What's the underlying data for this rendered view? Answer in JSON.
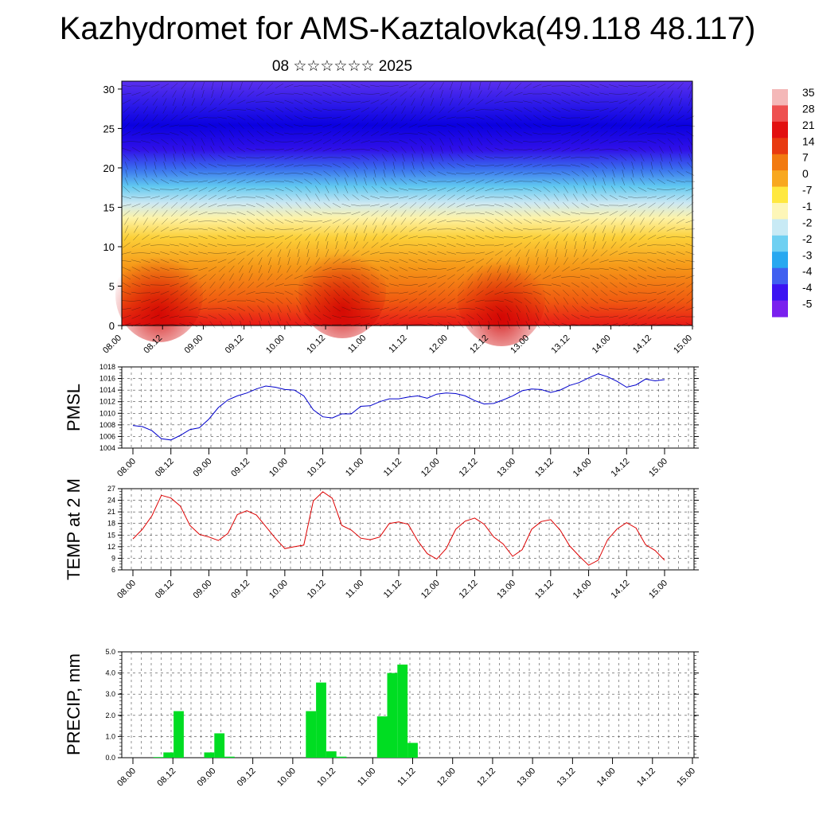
{
  "header": {
    "title": "Kazhydromet for AMS-Kaztalovka(49.118 48.117)",
    "subtitle": "08 ☆☆☆☆☆☆ 2025"
  },
  "colors": {
    "pmsl_line": "#0000cc",
    "temp_line": "#dd0000",
    "precip_bar": "#00dd22"
  },
  "chart_data": [
    {
      "type": "heatmap",
      "name": "cross-section",
      "x_ticks": [
        "08.00",
        "08.12",
        "09.00",
        "09.12",
        "10.00",
        "10.12",
        "11.00",
        "11.12",
        "12.00",
        "12.12",
        "13.00",
        "13.12",
        "14.00",
        "14.12",
        "15.00"
      ],
      "y_ticks": [
        0,
        5,
        10,
        15,
        20,
        25,
        30
      ],
      "ylim": [
        0,
        31
      ],
      "colorbar_labels": [
        "35",
        "28",
        "21",
        "14",
        "7",
        "0",
        "-7",
        "-1",
        "-2",
        "-2",
        "-3",
        "-4",
        "-4",
        "-5"
      ],
      "colorbar_colors": [
        "#f4b8b8",
        "#ee5050",
        "#e21010",
        "#e83a10",
        "#f27a10",
        "#f8a820",
        "#ffe840",
        "#fdf6b8",
        "#c8eaf5",
        "#6fd0f2",
        "#28a8f0",
        "#4060f0",
        "#3c14f2",
        "#7a20ee"
      ]
    },
    {
      "type": "line",
      "name": "PMSL",
      "ylabel": "PMSL",
      "ylim": [
        1004,
        1018
      ],
      "y_ticks": [
        1004,
        1006,
        1008,
        1010,
        1012,
        1014,
        1016,
        1018
      ],
      "x_ticks": [
        "08.00",
        "08.12",
        "09.00",
        "09.12",
        "10.00",
        "10.12",
        "11.00",
        "11.12",
        "12.00",
        "12.12",
        "13.00",
        "13.12",
        "14.00",
        "14.12",
        "15.00"
      ],
      "values": [
        1007.9,
        1007.7,
        1007.0,
        1005.6,
        1005.4,
        1006.2,
        1007.2,
        1007.5,
        1009.0,
        1011.0,
        1012.3,
        1013.0,
        1013.5,
        1014.2,
        1014.7,
        1014.5,
        1014.1,
        1014.0,
        1013.0,
        1010.6,
        1009.4,
        1009.2,
        1009.9,
        1009.9,
        1011.2,
        1011.3,
        1012.0,
        1012.5,
        1012.5,
        1012.8,
        1013.0,
        1012.6,
        1013.3,
        1013.5,
        1013.4,
        1013.0,
        1012.2,
        1011.6,
        1011.7,
        1012.3,
        1013.0,
        1013.9,
        1014.2,
        1014.1,
        1013.6,
        1014.0,
        1014.8,
        1015.3,
        1016.1,
        1016.8,
        1016.3,
        1015.5,
        1014.5,
        1014.9,
        1015.9,
        1015.6,
        1015.8
      ]
    },
    {
      "type": "line",
      "name": "TEMP at 2 M",
      "ylabel": "TEMP at 2 M",
      "ylim": [
        6,
        27
      ],
      "y_ticks": [
        6,
        9,
        12,
        15,
        18,
        21,
        24,
        27
      ],
      "x_ticks": [
        "08.00",
        "08.12",
        "09.00",
        "09.12",
        "10.00",
        "10.12",
        "11.00",
        "11.12",
        "12.00",
        "12.12",
        "13.00",
        "13.12",
        "14.00",
        "14.12",
        "15.00"
      ],
      "values": [
        14.0,
        16.5,
        20.0,
        25.3,
        24.6,
        22.5,
        17.5,
        15.2,
        14.5,
        13.6,
        15.4,
        20.3,
        21.3,
        20.2,
        17.2,
        14.2,
        11.5,
        12.0,
        12.4,
        23.8,
        26.2,
        24.5,
        17.5,
        16.3,
        14.2,
        13.8,
        14.5,
        18.0,
        18.4,
        17.8,
        13.5,
        10.2,
        8.8,
        11.5,
        16.5,
        18.6,
        19.4,
        17.8,
        14.5,
        12.7,
        9.5,
        11.2,
        16.5,
        18.5,
        19.0,
        16.3,
        12.2,
        9.6,
        7.2,
        8.5,
        13.8,
        16.6,
        18.2,
        16.8,
        12.5,
        11.0,
        8.5
      ]
    },
    {
      "type": "bar",
      "name": "PRECIP",
      "ylabel": "PRECIP, mm",
      "ylim": [
        0,
        5
      ],
      "y_ticks": [
        "0.0",
        "1.0",
        "2.0",
        "3.0",
        "4.0",
        "5.0"
      ],
      "x_ticks": [
        "08.00",
        "08.12",
        "09.00",
        "09.12",
        "10.00",
        "10.12",
        "11.00",
        "11.12",
        "12.00",
        "12.12",
        "13.00",
        "13.12",
        "14.00",
        "14.12",
        "15.00"
      ],
      "values": [
        0,
        0,
        0.03,
        0.25,
        2.2,
        0,
        0,
        0.25,
        1.15,
        0.05,
        0,
        0,
        0,
        0,
        0,
        0,
        0,
        2.2,
        3.55,
        0.3,
        0.05,
        0,
        0,
        0,
        1.95,
        4.0,
        4.4,
        0.7,
        0,
        0,
        0,
        0,
        0,
        0,
        0,
        0,
        0,
        0,
        0,
        0,
        0,
        0,
        0,
        0,
        0,
        0,
        0,
        0,
        0,
        0,
        0,
        0,
        0,
        0,
        0,
        0
      ]
    }
  ]
}
